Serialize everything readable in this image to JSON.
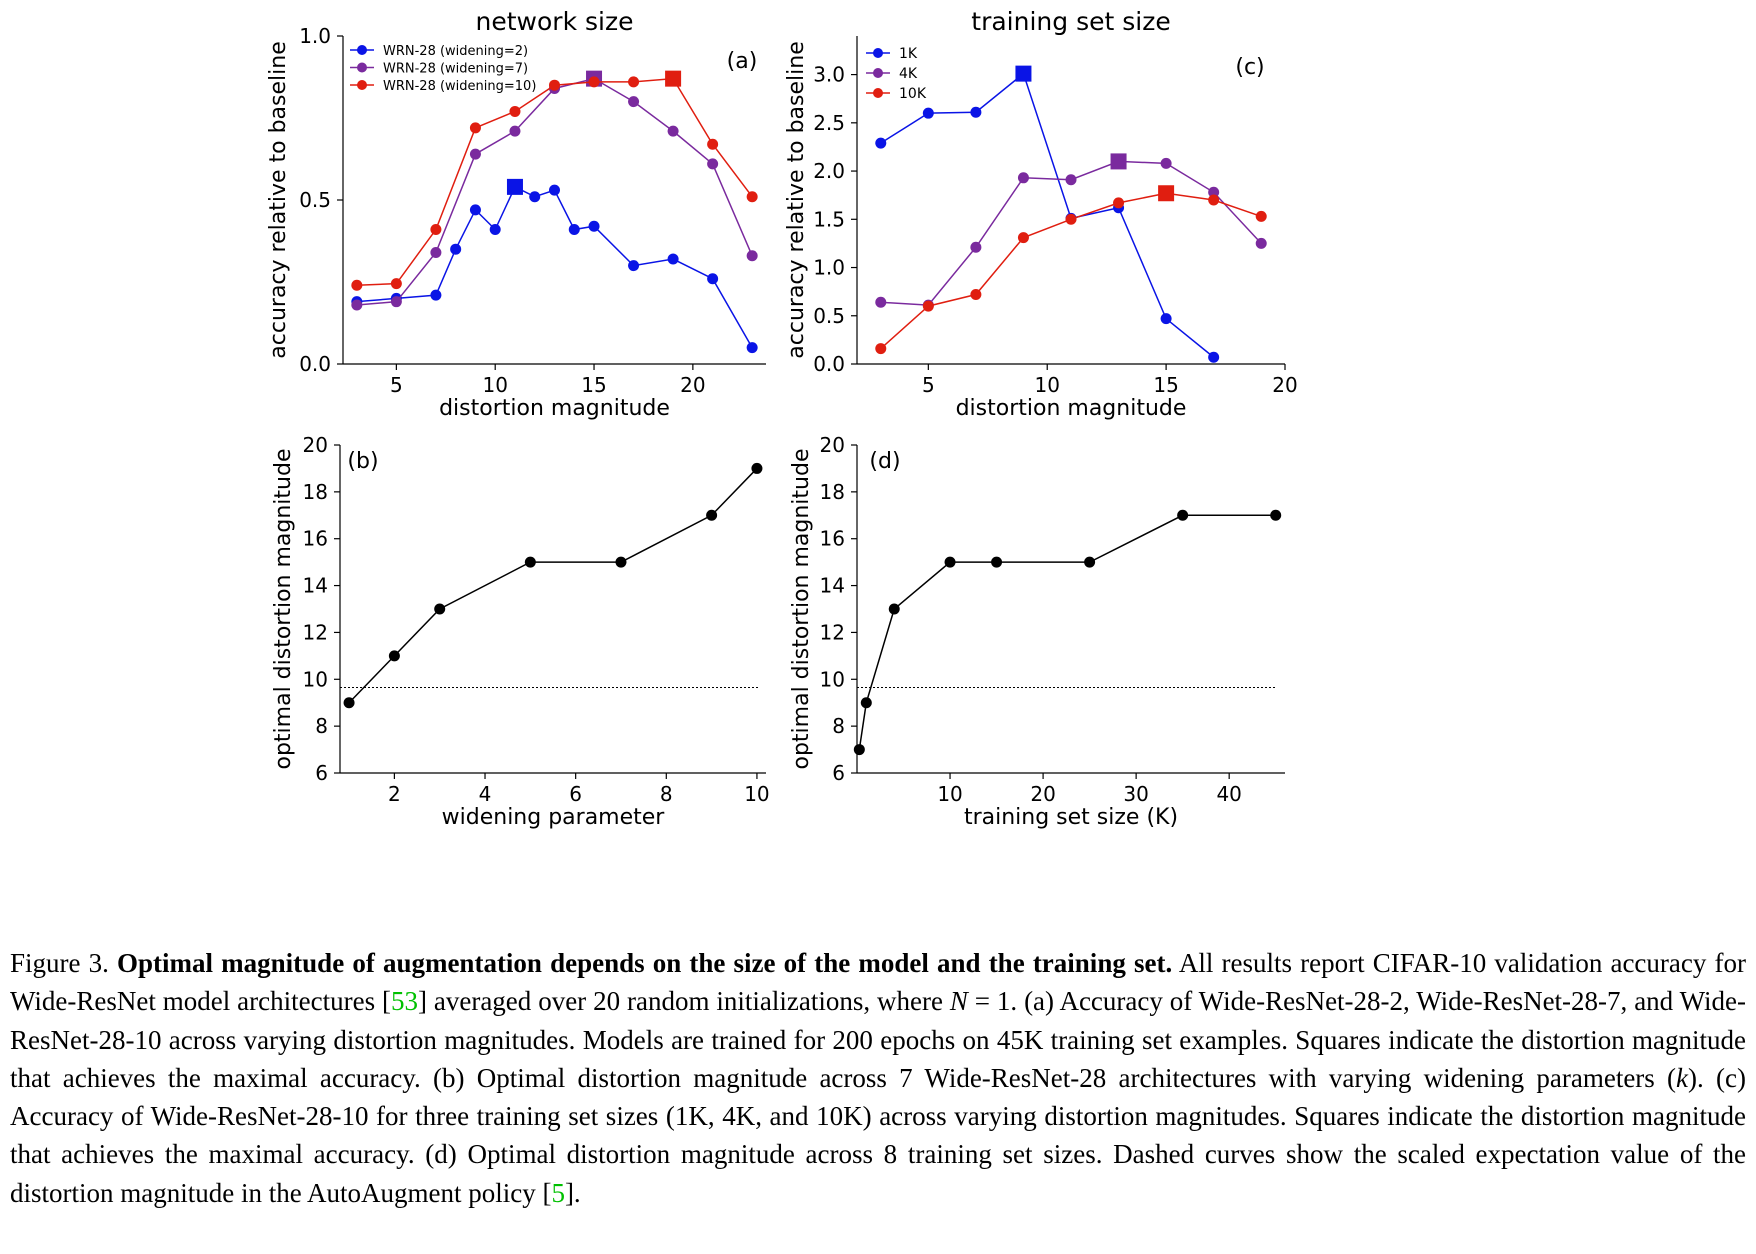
{
  "colors": {
    "blue": "#0a14e6",
    "purple": "#7a2a9e",
    "red": "#e01e10",
    "black": "#000000"
  },
  "chart_data": [
    {
      "id": "a",
      "type": "line",
      "title": "network size",
      "panel_label": "(a)",
      "xlabel": "distortion magnitude",
      "ylabel": "accuracy relative to baseline",
      "xlim": [
        2.3,
        23.7
      ],
      "ylim": [
        0.0,
        1.0
      ],
      "xticks": [
        5,
        10,
        15,
        20
      ],
      "yticks": [
        0.0,
        0.5,
        1.0
      ],
      "ytick_labels": [
        "0.0",
        "0.5",
        "1.0"
      ],
      "legend_position": "top-left",
      "series": [
        {
          "name": "WRN-28 (widening=2)",
          "color": "#0a14e6",
          "x": [
            3,
            5,
            7,
            8,
            9,
            10,
            11,
            12,
            13,
            14,
            15,
            17,
            19,
            21,
            23
          ],
          "y": [
            0.19,
            0.2,
            0.21,
            0.35,
            0.47,
            0.41,
            0.54,
            0.51,
            0.53,
            0.41,
            0.42,
            0.3,
            0.32,
            0.26,
            0.05
          ],
          "best_x": 11
        },
        {
          "name": "WRN-28 (widening=7)",
          "color": "#7a2a9e",
          "x": [
            3,
            5,
            7,
            9,
            11,
            13,
            15,
            17,
            19,
            21,
            23
          ],
          "y": [
            0.18,
            0.19,
            0.34,
            0.64,
            0.71,
            0.84,
            0.87,
            0.8,
            0.71,
            0.61,
            0.33
          ],
          "best_x": 15
        },
        {
          "name": "WRN-28 (widening=10)",
          "color": "#e01e10",
          "x": [
            3,
            5,
            7,
            9,
            11,
            13,
            15,
            17,
            19,
            21,
            23
          ],
          "y": [
            0.24,
            0.245,
            0.41,
            0.72,
            0.77,
            0.85,
            0.86,
            0.86,
            0.87,
            0.67,
            0.51
          ],
          "best_x": 19
        }
      ]
    },
    {
      "id": "c",
      "type": "line",
      "title": "training set size",
      "panel_label": "(c)",
      "xlabel": "distortion magnitude",
      "ylabel": "accuracy relative to baseline",
      "xlim": [
        2.0,
        20.0
      ],
      "ylim": [
        0.0,
        3.4
      ],
      "xticks": [
        5,
        10,
        15,
        20
      ],
      "yticks": [
        0.0,
        0.5,
        1.0,
        1.5,
        2.0,
        2.5,
        3.0
      ],
      "ytick_labels": [
        "0.0",
        "0.5",
        "1.0",
        "1.5",
        "2.0",
        "2.5",
        "3.0"
      ],
      "legend_position": "top-left",
      "series": [
        {
          "name": "1K",
          "color": "#0a14e6",
          "x": [
            3,
            5,
            7,
            9,
            11,
            13,
            15,
            17
          ],
          "y": [
            2.29,
            2.6,
            2.61,
            3.01,
            1.51,
            1.62,
            0.47,
            0.07
          ],
          "best_x": 9
        },
        {
          "name": "4K",
          "color": "#7a2a9e",
          "x": [
            3,
            5,
            7,
            9,
            11,
            13,
            15,
            17,
            19
          ],
          "y": [
            0.64,
            0.61,
            1.21,
            1.93,
            1.91,
            2.1,
            2.08,
            1.78,
            1.25
          ],
          "best_x": 13
        },
        {
          "name": "10K",
          "color": "#e01e10",
          "x": [
            3,
            5,
            7,
            9,
            11,
            13,
            15,
            17,
            19
          ],
          "y": [
            0.16,
            0.6,
            0.72,
            1.31,
            1.5,
            1.67,
            1.77,
            1.7,
            1.53
          ],
          "best_x": 15
        }
      ]
    },
    {
      "id": "b",
      "type": "line",
      "title": "",
      "panel_label": "(b)",
      "xlabel": "widening parameter",
      "ylabel": "optimal distortion magnitude",
      "xlim": [
        0.8,
        10.2
      ],
      "ylim": [
        6,
        20
      ],
      "xticks": [
        2,
        4,
        6,
        8,
        10
      ],
      "yticks": [
        6,
        8,
        10,
        12,
        14,
        16,
        18,
        20
      ],
      "ytick_labels": [
        "6",
        "8",
        "10",
        "12",
        "14",
        "16",
        "18",
        "20"
      ],
      "dashed_line_y": 9.65,
      "series": [
        {
          "name": "",
          "color": "#000000",
          "x": [
            1,
            2,
            3,
            5,
            7,
            9,
            10
          ],
          "y": [
            9,
            11,
            13,
            15,
            15,
            17,
            19
          ]
        }
      ]
    },
    {
      "id": "d",
      "type": "line",
      "title": "",
      "panel_label": "(d)",
      "xlabel": "training set size (K)",
      "ylabel": "optimal distortion magnitude",
      "xlim": [
        0.0,
        46.0
      ],
      "ylim": [
        6,
        20
      ],
      "xticks": [
        10,
        20,
        30,
        40
      ],
      "yticks": [
        6,
        8,
        10,
        12,
        14,
        16,
        18,
        20
      ],
      "ytick_labels": [
        "6",
        "8",
        "10",
        "12",
        "14",
        "16",
        "18",
        "20"
      ],
      "dashed_line_y": 9.65,
      "series": [
        {
          "name": "",
          "color": "#000000",
          "x": [
            0.25,
            1,
            4,
            10,
            15,
            25,
            35,
            45
          ],
          "y": [
            7,
            9,
            13,
            15,
            15,
            15,
            17,
            17
          ]
        }
      ]
    }
  ],
  "caption": {
    "fig_label": "Figure 3.",
    "bold_title": "Optimal magnitude of augmentation depends on the size of the model and the training set.",
    "seg1": " All results report CIFAR-10 validation accuracy for Wide-ResNet model architectures [",
    "ref1": "53",
    "seg2": "] averaged over 20 random initializations, where ",
    "math_n": "N",
    "seg3": " = 1. (a) Accuracy of Wide-ResNet-28-2, Wide-ResNet-28-7, and Wide-ResNet-28-10 across varying distortion magnitudes. Models are trained for 200 epochs on 45K training set examples. Squares indicate the distortion magnitude that achieves the maximal accuracy. (b) Optimal distortion magnitude across 7 Wide-ResNet-28 architectures with varying widening parameters (",
    "math_k": "k",
    "seg4": "). (c) Accuracy of Wide-ResNet-28-10 for three training set sizes (1K, 4K, and 10K) across varying distortion magnitudes. Squares indicate the distortion magnitude that achieves the maximal accuracy. (d) Optimal distortion magnitude across 8 training set sizes. Dashed curves show the scaled expectation value of the distortion magnitude in the AutoAugment policy [",
    "ref2": "5",
    "seg5": "]."
  }
}
